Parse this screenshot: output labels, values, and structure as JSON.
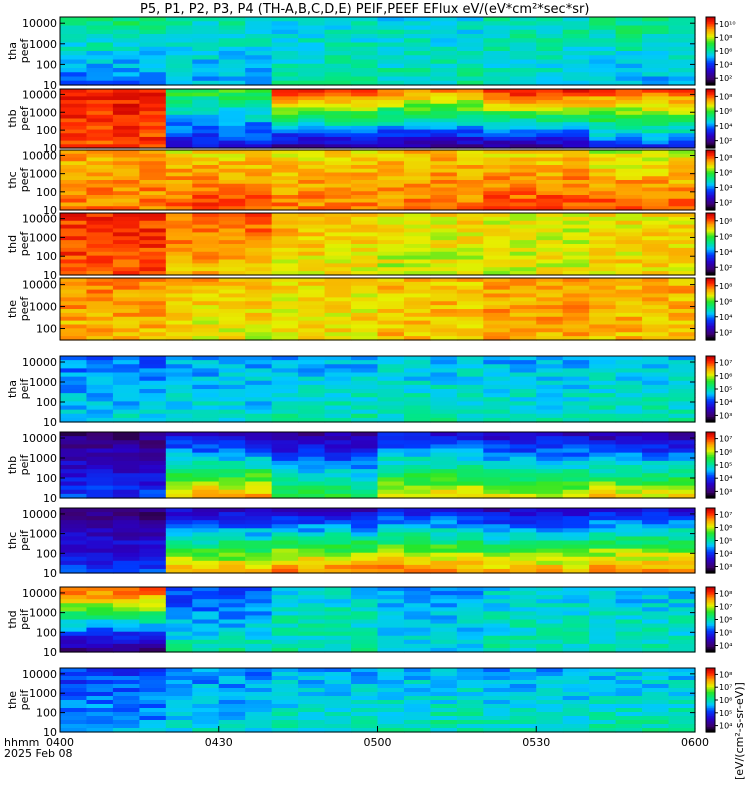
{
  "title": "P5, P1, P2, P3, P4 (TH-A,B,C,D,E) PEIF,PEEF EFlux eV/(eV*cm²*sec*sr)",
  "units_label": "[eV/(cm²-s-sr-eV)]",
  "footer": {
    "line1": "hhmm",
    "line2": "2025 Feb 08"
  },
  "chart_data": {
    "type": "heatmap",
    "x_unit": "UT (hhmm)",
    "x_ticks": [
      "0400",
      "0430",
      "0500",
      "0530",
      "0600"
    ],
    "xlim": [
      "0400",
      "0600"
    ],
    "y_scale": "log",
    "colormap": "rainbow (violet/black low → red high)",
    "panels": [
      {
        "label": [
          "tha",
          "peef"
        ],
        "y_ticks": [
          "10",
          "100",
          "1000",
          "10000"
        ],
        "ylim": [
          10,
          20000
        ],
        "z_ticks": [
          "10²",
          "10⁴",
          "10⁶",
          "10⁸",
          "10¹⁰"
        ],
        "profile": [
          [
            0.55,
            0.35
          ],
          [
            0.5,
            0.4
          ],
          [
            0.45,
            0.5
          ],
          [
            0.45,
            0.5
          ],
          [
            0.5,
            0.45
          ],
          [
            0.55,
            0.4
          ]
        ]
      },
      {
        "label": [
          "thb",
          "peef"
        ],
        "y_ticks": [
          "10",
          "100",
          "1000",
          "10000"
        ],
        "ylim": [
          10,
          20000
        ],
        "z_ticks": [
          "10²",
          "10⁴",
          "10⁶",
          "10⁸"
        ],
        "profile": [
          [
            0.95,
            0.9
          ],
          [
            0.6,
            0.25
          ],
          [
            0.95,
            0.15
          ],
          [
            0.85,
            0.15
          ],
          [
            0.95,
            0.15
          ],
          [
            0.9,
            0.3
          ]
        ]
      },
      {
        "label": [
          "thc",
          "peef"
        ],
        "y_ticks": [
          "10",
          "100",
          "1000",
          "10000"
        ],
        "ylim": [
          10,
          20000
        ],
        "z_ticks": [
          "10²",
          "10⁴",
          "10⁶",
          "10⁸"
        ],
        "profile": [
          [
            0.8,
            0.85
          ],
          [
            0.75,
            0.9
          ],
          [
            0.75,
            0.85
          ],
          [
            0.78,
            0.85
          ],
          [
            0.76,
            0.9
          ],
          [
            0.7,
            0.9
          ]
        ]
      },
      {
        "label": [
          "thd",
          "peef"
        ],
        "y_ticks": [
          "10",
          "100",
          "1000",
          "10000"
        ],
        "ylim": [
          10,
          20000
        ],
        "z_ticks": [
          "10²",
          "10⁴",
          "10⁶",
          "10⁸"
        ],
        "profile": [
          [
            0.92,
            0.9
          ],
          [
            0.88,
            0.78
          ],
          [
            0.8,
            0.72
          ],
          [
            0.75,
            0.7
          ],
          [
            0.72,
            0.72
          ],
          [
            0.75,
            0.75
          ]
        ]
      },
      {
        "label": [
          "the",
          "peef"
        ],
        "y_ticks": [
          "100",
          "1000",
          "10000"
        ],
        "ylim": [
          30,
          20000
        ],
        "z_ticks": [
          "10²",
          "10⁴",
          "10⁶",
          "10⁸"
        ],
        "profile": [
          [
            0.85,
            0.78
          ],
          [
            0.8,
            0.72
          ],
          [
            0.75,
            0.75
          ],
          [
            0.78,
            0.78
          ],
          [
            0.82,
            0.8
          ],
          [
            0.8,
            0.78
          ]
        ]
      },
      {
        "label": [
          "tha",
          "peif"
        ],
        "y_ticks": [
          "10",
          "100",
          "1000",
          "10000"
        ],
        "ylim": [
          10,
          20000
        ],
        "z_ticks": [
          "10³",
          "10⁴",
          "10⁵",
          "10⁶",
          "10⁷"
        ],
        "profile": [
          [
            0.35,
            0.45
          ],
          [
            0.4,
            0.45
          ],
          [
            0.4,
            0.5
          ],
          [
            0.42,
            0.5
          ],
          [
            0.4,
            0.48
          ],
          [
            0.42,
            0.5
          ]
        ]
      },
      {
        "label": [
          "thb",
          "peif"
        ],
        "y_ticks": [
          "10",
          "100",
          "1000",
          "10000"
        ],
        "ylim": [
          10,
          20000
        ],
        "z_ticks": [
          "10³",
          "10⁴",
          "10⁵",
          "10⁶",
          "10⁷"
        ],
        "profile": [
          [
            0.1,
            0.3
          ],
          [
            0.2,
            0.8
          ],
          [
            0.15,
            0.6
          ],
          [
            0.25,
            0.75
          ],
          [
            0.2,
            0.7
          ],
          [
            0.15,
            0.75
          ]
        ]
      },
      {
        "label": [
          "thc",
          "peif"
        ],
        "y_ticks": [
          "10",
          "100",
          "1000",
          "10000"
        ],
        "ylim": [
          10,
          20000
        ],
        "z_ticks": [
          "10³",
          "10⁴",
          "10⁵",
          "10⁶",
          "10⁷"
        ],
        "profile": [
          [
            0.1,
            0.3
          ],
          [
            0.2,
            0.8
          ],
          [
            0.2,
            0.85
          ],
          [
            0.25,
            0.85
          ],
          [
            0.2,
            0.8
          ],
          [
            0.25,
            0.85
          ]
        ]
      },
      {
        "label": [
          "thd",
          "peif"
        ],
        "y_ticks": [
          "10",
          "100",
          "1000",
          "10000"
        ],
        "ylim": [
          10,
          20000
        ],
        "z_ticks": [
          "10⁴",
          "10⁵",
          "10⁶",
          "10⁷",
          "10⁸"
        ],
        "profile": [
          [
            0.9,
            0.1
          ],
          [
            0.3,
            0.5
          ],
          [
            0.45,
            0.5
          ],
          [
            0.4,
            0.45
          ],
          [
            0.45,
            0.48
          ],
          [
            0.42,
            0.5
          ]
        ]
      },
      {
        "label": [
          "the",
          "peif"
        ],
        "y_ticks": [
          "10",
          "100",
          "1000",
          "10000"
        ],
        "ylim": [
          10,
          20000
        ],
        "z_ticks": [
          "10⁴",
          "10⁵",
          "10⁶",
          "10⁷",
          "10⁸"
        ],
        "profile": [
          [
            0.3,
            0.4
          ],
          [
            0.38,
            0.45
          ],
          [
            0.4,
            0.48
          ],
          [
            0.42,
            0.5
          ],
          [
            0.4,
            0.48
          ],
          [
            0.42,
            0.5
          ]
        ]
      }
    ]
  }
}
